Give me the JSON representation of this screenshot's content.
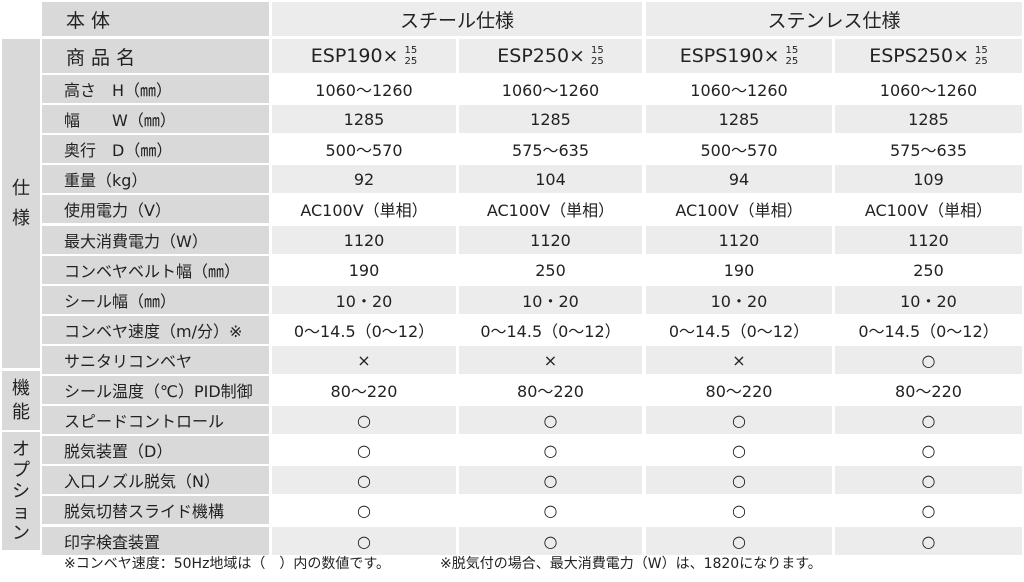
{
  "header": {
    "body_label": "本 体",
    "steel": "スチール仕様",
    "stainless": "ステンレス仕様"
  },
  "product_row": {
    "label": "商 品 名",
    "products": [
      {
        "name": "ESP190×",
        "top": "15",
        "bottom": "25"
      },
      {
        "name": "ESP250×",
        "top": "15",
        "bottom": "25"
      },
      {
        "name": "ESPS190×",
        "top": "15",
        "bottom": "25"
      },
      {
        "name": "ESPS250×",
        "top": "15",
        "bottom": "25"
      }
    ]
  },
  "categories": {
    "spec": "仕\n様",
    "function": "機\n能",
    "option": "オ\nプ\nシ\nョ\nン"
  },
  "rows": [
    {
      "label": "高さ　H（㎜）",
      "values": [
        "1060〜1260",
        "1060〜1260",
        "1060〜1260",
        "1060〜1260"
      ]
    },
    {
      "label": "幅　　W（㎜）",
      "values": [
        "1285",
        "1285",
        "1285",
        "1285"
      ]
    },
    {
      "label": "奥行　D（㎜）",
      "values": [
        "500〜570",
        "575〜635",
        "500〜570",
        "575〜635"
      ]
    },
    {
      "label": "重量（kg）",
      "values": [
        "92",
        "104",
        "94",
        "109"
      ]
    },
    {
      "label": "使用電力（V）",
      "values": [
        "AC100V（単相）",
        "AC100V（単相）",
        "AC100V（単相）",
        "AC100V（単相）"
      ]
    },
    {
      "label": "最大消費電力（W）",
      "values": [
        "1120",
        "1120",
        "1120",
        "1120"
      ]
    },
    {
      "label": "コンベヤベルト幅（㎜）",
      "values": [
        "190",
        "250",
        "190",
        "250"
      ]
    },
    {
      "label": "シール幅（㎜）",
      "values": [
        "10・20",
        "10・20",
        "10・20",
        "10・20"
      ]
    },
    {
      "label": "コンベヤ速度（m/分）※",
      "values": [
        "0〜14.5（0〜12）",
        "0〜14.5（0〜12）",
        "0〜14.5（0〜12）",
        "0〜14.5（0〜12）"
      ]
    },
    {
      "label": "サニタリコンベヤ",
      "values": [
        "×",
        "×",
        "×",
        "○"
      ]
    },
    {
      "label": "シール温度（℃）PID制御",
      "values": [
        "80〜220",
        "80〜220",
        "80〜220",
        "80〜220"
      ]
    },
    {
      "label": "スピードコントロール",
      "values": [
        "○",
        "○",
        "○",
        "○"
      ]
    },
    {
      "label": "脱気装置（D）",
      "values": [
        "○",
        "○",
        "○",
        "○"
      ]
    },
    {
      "label": "入口ノズル脱気（N）",
      "values": [
        "○",
        "○",
        "○",
        "○"
      ]
    },
    {
      "label": "脱気切替スライド機構",
      "values": [
        "○",
        "○",
        "○",
        "○"
      ]
    },
    {
      "label": "印字検査装置",
      "values": [
        "○",
        "○",
        "○",
        "○"
      ]
    }
  ],
  "notes": {
    "left": "※コンベヤ速度：50Hz地域は（　）内の数値です。",
    "right": "※脱気付の場合、最大消費電力（W）は、1820になります。"
  }
}
